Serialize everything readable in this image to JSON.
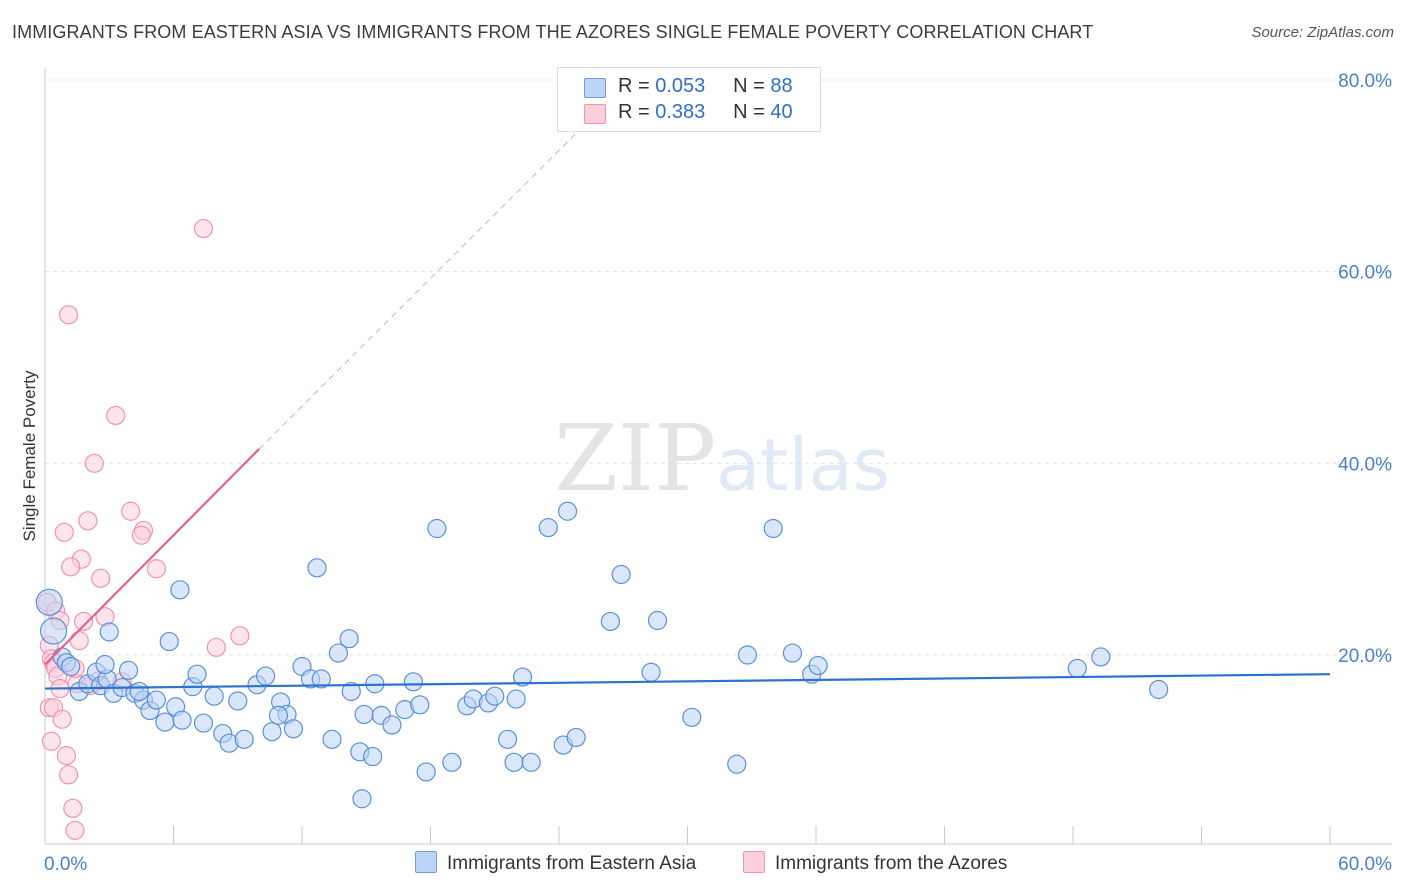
{
  "title": "IMMIGRANTS FROM EASTERN ASIA VS IMMIGRANTS FROM THE AZORES SINGLE FEMALE POVERTY CORRELATION CHART",
  "source": "Source: ZipAtlas.com",
  "watermark": {
    "zip": "ZIP",
    "atlas": "atlas"
  },
  "legend": {
    "r_label": "R =",
    "n_label": "N =",
    "series": [
      {
        "r": "0.053",
        "n": "88",
        "swatch_fill": "#bcd4f5",
        "swatch_border": "#6f9ee0"
      },
      {
        "r": "0.383",
        "n": "40",
        "swatch_fill": "#fbd0dc",
        "swatch_border": "#ee98b0"
      }
    ]
  },
  "bottom_legend": [
    {
      "label": "Immigrants from Eastern Asia"
    },
    {
      "label": "Immigrants from the Azores"
    }
  ],
  "chart_data": {
    "type": "scatter",
    "title": "IMMIGRANTS FROM EASTERN ASIA VS IMMIGRANTS FROM THE AZORES SINGLE FEMALE POVERTY CORRELATION CHART",
    "xlabel": "",
    "ylabel": "Single Female Poverty",
    "xlim": [
      0,
      60
    ],
    "ylim": [
      0,
      80
    ],
    "x_tick_labels": [
      "0.0%",
      "60.0%"
    ],
    "y_ticks": [
      20,
      40,
      60,
      80
    ],
    "y_tick_labels": [
      "20.0%",
      "40.0%",
      "60.0%",
      "80.0%"
    ],
    "grid": true,
    "series": [
      {
        "name": "Immigrants from Eastern Asia",
        "color": "#4a86d4",
        "fill": "#bcd4f5",
        "trend": {
          "x": [
            0,
            60
          ],
          "y": [
            16.5,
            18.0
          ],
          "style": "solid",
          "color": "#2b73cf"
        },
        "points": [
          [
            0.2,
            25.5
          ],
          [
            0.4,
            22.5
          ],
          [
            0.8,
            19.8
          ],
          [
            1.0,
            19.2
          ],
          [
            1.2,
            18.8
          ],
          [
            1.6,
            16.2
          ],
          [
            2.0,
            17.0
          ],
          [
            2.4,
            18.2
          ],
          [
            2.6,
            16.8
          ],
          [
            2.9,
            17.5
          ],
          [
            3.2,
            16.0
          ],
          [
            3.6,
            16.6
          ],
          [
            3.9,
            18.4
          ],
          [
            4.2,
            16.0
          ],
          [
            4.6,
            15.3
          ],
          [
            4.9,
            14.2
          ],
          [
            5.2,
            15.3
          ],
          [
            5.6,
            13.0
          ],
          [
            6.1,
            14.6
          ],
          [
            6.4,
            13.2
          ],
          [
            6.9,
            16.7
          ],
          [
            7.1,
            18.0
          ],
          [
            7.4,
            12.9
          ],
          [
            7.9,
            15.7
          ],
          [
            8.3,
            11.8
          ],
          [
            8.6,
            10.8
          ],
          [
            9.0,
            15.2
          ],
          [
            9.3,
            11.2
          ],
          [
            9.9,
            16.9
          ],
          [
            10.3,
            17.8
          ],
          [
            10.6,
            12.0
          ],
          [
            11.0,
            15.1
          ],
          [
            11.3,
            13.8
          ],
          [
            11.6,
            12.3
          ],
          [
            12.0,
            18.8
          ],
          [
            12.4,
            17.5
          ],
          [
            12.9,
            17.5
          ],
          [
            13.4,
            11.2
          ],
          [
            13.7,
            20.2
          ],
          [
            14.2,
            21.7
          ],
          [
            14.3,
            16.2
          ],
          [
            14.7,
            9.9
          ],
          [
            14.9,
            13.8
          ],
          [
            15.3,
            9.4
          ],
          [
            15.4,
            17.0
          ],
          [
            15.7,
            13.7
          ],
          [
            16.2,
            12.7
          ],
          [
            16.8,
            14.3
          ],
          [
            17.2,
            17.2
          ],
          [
            17.8,
            7.8
          ],
          [
            18.3,
            33.2
          ],
          [
            19.0,
            8.8
          ],
          [
            19.7,
            14.7
          ],
          [
            20.0,
            15.4
          ],
          [
            20.7,
            15.0
          ],
          [
            21.0,
            15.7
          ],
          [
            21.6,
            11.2
          ],
          [
            21.9,
            8.8
          ],
          [
            22.3,
            17.7
          ],
          [
            22.7,
            8.8
          ],
          [
            23.5,
            33.3
          ],
          [
            24.2,
            10.6
          ],
          [
            24.8,
            11.4
          ],
          [
            26.4,
            23.5
          ],
          [
            26.9,
            28.4
          ],
          [
            28.3,
            18.2
          ],
          [
            28.6,
            23.6
          ],
          [
            30.2,
            13.5
          ],
          [
            32.8,
            20.0
          ],
          [
            32.3,
            8.6
          ],
          [
            14.8,
            5.0
          ],
          [
            5.8,
            21.4
          ],
          [
            6.3,
            26.8
          ],
          [
            3.0,
            22.4
          ],
          [
            34.9,
            20.2
          ],
          [
            34.0,
            33.2
          ],
          [
            35.8,
            18.0
          ],
          [
            36.1,
            18.9
          ],
          [
            48.2,
            18.6
          ],
          [
            49.3,
            19.8
          ],
          [
            52.0,
            16.4
          ],
          [
            12.7,
            29.1
          ],
          [
            10.9,
            13.7
          ],
          [
            2.8,
            19.0
          ],
          [
            17.5,
            14.8
          ],
          [
            4.4,
            16.2
          ],
          [
            22.0,
            15.4
          ],
          [
            24.4,
            35.0
          ]
        ]
      },
      {
        "name": "Immigrants from the Azores",
        "color": "#ee8aa8",
        "fill": "#fbd0dc",
        "trend": {
          "x": [
            0,
            10
          ],
          "y": [
            19.0,
            41.5
          ],
          "style": "solid",
          "color": "#e0658c"
        },
        "trend_extension": {
          "x": [
            10,
            25.5
          ],
          "y": [
            41.5,
            76.0
          ],
          "style": "dashed",
          "color": "#e8a3b8"
        },
        "points": [
          [
            0.1,
            25.5
          ],
          [
            0.2,
            21.0
          ],
          [
            0.3,
            19.6
          ],
          [
            0.4,
            19.2
          ],
          [
            0.5,
            18.6
          ],
          [
            0.6,
            17.8
          ],
          [
            0.7,
            16.5
          ],
          [
            0.2,
            14.5
          ],
          [
            0.4,
            14.5
          ],
          [
            0.3,
            11.0
          ],
          [
            0.8,
            13.3
          ],
          [
            1.0,
            9.5
          ],
          [
            1.1,
            7.5
          ],
          [
            1.3,
            4.0
          ],
          [
            1.4,
            1.7
          ],
          [
            1.5,
            17.0
          ],
          [
            1.6,
            21.5
          ],
          [
            1.8,
            23.5
          ],
          [
            2.0,
            34.0
          ],
          [
            2.3,
            40.0
          ],
          [
            2.5,
            17.3
          ],
          [
            2.6,
            28.0
          ],
          [
            2.8,
            24.0
          ],
          [
            1.7,
            30.0
          ],
          [
            1.2,
            29.2
          ],
          [
            0.9,
            32.8
          ],
          [
            1.1,
            55.5
          ],
          [
            3.3,
            45.0
          ],
          [
            4.0,
            35.0
          ],
          [
            4.6,
            33.0
          ],
          [
            5.2,
            29.0
          ],
          [
            7.4,
            64.5
          ],
          [
            4.5,
            32.5
          ],
          [
            8.0,
            20.8
          ],
          [
            9.1,
            22.0
          ],
          [
            0.5,
            24.6
          ],
          [
            0.7,
            23.6
          ],
          [
            1.4,
            18.6
          ],
          [
            3.6,
            17.2
          ],
          [
            2.1,
            16.8
          ]
        ]
      }
    ]
  }
}
